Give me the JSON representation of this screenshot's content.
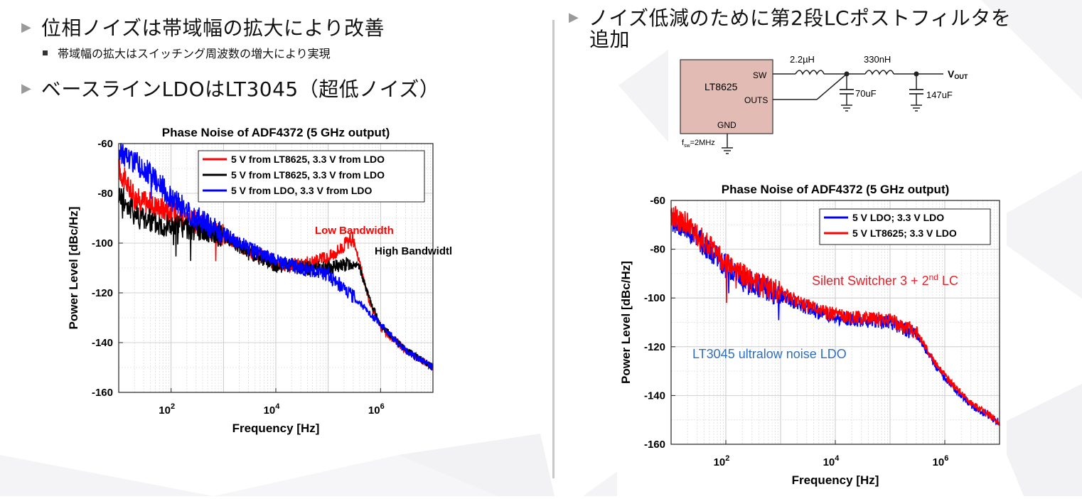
{
  "left": {
    "bullet1": "位相ノイズは帯域幅の拡大により改善",
    "sub1": "帯域幅の拡大はスイッチング周波数の増大により実現",
    "bullet2": "ベースラインLDOはLT3045（超低ノイズ）"
  },
  "right": {
    "bullet1_line1": "ノイズ低減のために第2段LCポストフィルタを",
    "bullet1_line2": "追加"
  },
  "circuit": {
    "chip": "LT8625",
    "sw": "SW",
    "outs": "OUTS",
    "gnd": "GND",
    "fsw_main": "f",
    "fsw_sub": "sw",
    "fsw_rest": "=2MHz",
    "l1": "2.2µH",
    "l2": "330nH",
    "c1": "70uF",
    "c2": "147uF",
    "vout_main": "V",
    "vout_sub": "OUT"
  },
  "colors": {
    "red": "#ff0000",
    "black": "#000000",
    "blue": "#0000ff",
    "chip": "#e2bcb4",
    "annot_blue": "#2f6fc0",
    "annot_red": "#e8202a"
  },
  "chart_data": [
    {
      "type": "line",
      "title": "Phase Noise of ADF4372 (5 GHz output)",
      "xlabel": "Frequency [Hz]",
      "ylabel": "Power Level [dBc/Hz]",
      "xscale": "log",
      "xlim": [
        10,
        10000000
      ],
      "ylim": [
        -160,
        -60
      ],
      "yticks": [
        "-60",
        "-80",
        "-100",
        "-120",
        "-140",
        "-160"
      ],
      "xticks": [
        {
          "base": "10",
          "exp": "2",
          "value": 100
        },
        {
          "base": "10",
          "exp": "4",
          "value": 10000
        },
        {
          "base": "10",
          "exp": "6",
          "value": 1000000
        }
      ],
      "legend_position": "top-right",
      "grid": true,
      "annotations": [
        {
          "text": "Low Bandwidth",
          "color": "#ff0000"
        },
        {
          "text": "High Bandwidth",
          "color": "#000000"
        }
      ],
      "series": [
        {
          "name": "5 V from LT8625, 3.3 V from LDO",
          "color": "#ff0000",
          "x": [
            10,
            20,
            50,
            100,
            300,
            1000,
            3000,
            10000,
            30000,
            100000,
            200000,
            300000,
            400000,
            600000,
            1000000,
            3000000,
            10000000
          ],
          "y": [
            -70,
            -82,
            -85,
            -87,
            -92,
            -97,
            -103,
            -108,
            -109,
            -106,
            -101,
            -98,
            -108,
            -123,
            -134,
            -143,
            -150
          ]
        },
        {
          "name": "5 V from LT8625, 3.3 V from LDO",
          "color": "#000000",
          "x": [
            10,
            20,
            50,
            100,
            300,
            1000,
            3000,
            10000,
            30000,
            100000,
            300000,
            400000,
            600000,
            1000000,
            3000000,
            10000000
          ],
          "y": [
            -80,
            -88,
            -92,
            -93,
            -94,
            -97,
            -104,
            -109,
            -110,
            -110,
            -108,
            -110,
            -122,
            -133,
            -143,
            -150
          ]
        },
        {
          "name": "5 V from LDO, 3.3 V from LDO",
          "color": "#0000ff",
          "x": [
            10,
            20,
            50,
            100,
            300,
            1000,
            3000,
            10000,
            30000,
            100000,
            200000,
            400000,
            1000000,
            3000000,
            10000000
          ],
          "y": [
            -63,
            -67,
            -74,
            -82,
            -90,
            -96,
            -102,
            -107,
            -110,
            -113,
            -118,
            -124,
            -133,
            -143,
            -150
          ]
        }
      ]
    },
    {
      "type": "line",
      "title": "Phase Noise of ADF4372 (5 GHz output)",
      "xlabel": "Frequency [Hz]",
      "ylabel": "Power Level [dBc/Hz]",
      "xscale": "log",
      "xlim": [
        10,
        10000000
      ],
      "ylim": [
        -160,
        -60
      ],
      "yticks": [
        "-60",
        "-80",
        "-100",
        "-120",
        "-140",
        "-160"
      ],
      "xticks": [
        {
          "base": "10",
          "exp": "2",
          "value": 100
        },
        {
          "base": "10",
          "exp": "4",
          "value": 10000
        },
        {
          "base": "10",
          "exp": "6",
          "value": 1000000
        }
      ],
      "legend_position": "top-right",
      "grid": true,
      "annotations": [
        {
          "text": "Silent Switcher 3 + 2",
          "sup": "nd",
          "tail": " LC",
          "color": "#e8202a"
        },
        {
          "text": "LT3045 ultralow noise LDO",
          "color": "#2f6fc0"
        }
      ],
      "series": [
        {
          "name": "5 V LDO; 3.3 V LDO",
          "color": "#0000ff",
          "x": [
            10,
            20,
            50,
            100,
            300,
            1000,
            3000,
            10000,
            30000,
            100000,
            300000,
            600000,
            1000000,
            3000000,
            10000000
          ],
          "y": [
            -68,
            -72,
            -80,
            -87,
            -94,
            -99,
            -104,
            -108,
            -109,
            -110,
            -115,
            -126,
            -133,
            -144,
            -151
          ]
        },
        {
          "name": "5 V LT8625; 3.3 V LDO",
          "color": "#ff0000",
          "x": [
            10,
            20,
            50,
            100,
            300,
            1000,
            3000,
            10000,
            30000,
            100000,
            300000,
            600000,
            1000000,
            3000000,
            10000000
          ],
          "y": [
            -66,
            -70,
            -79,
            -86,
            -93,
            -98,
            -103,
            -107,
            -108,
            -109,
            -114,
            -125,
            -132,
            -143,
            -151
          ]
        }
      ]
    }
  ]
}
